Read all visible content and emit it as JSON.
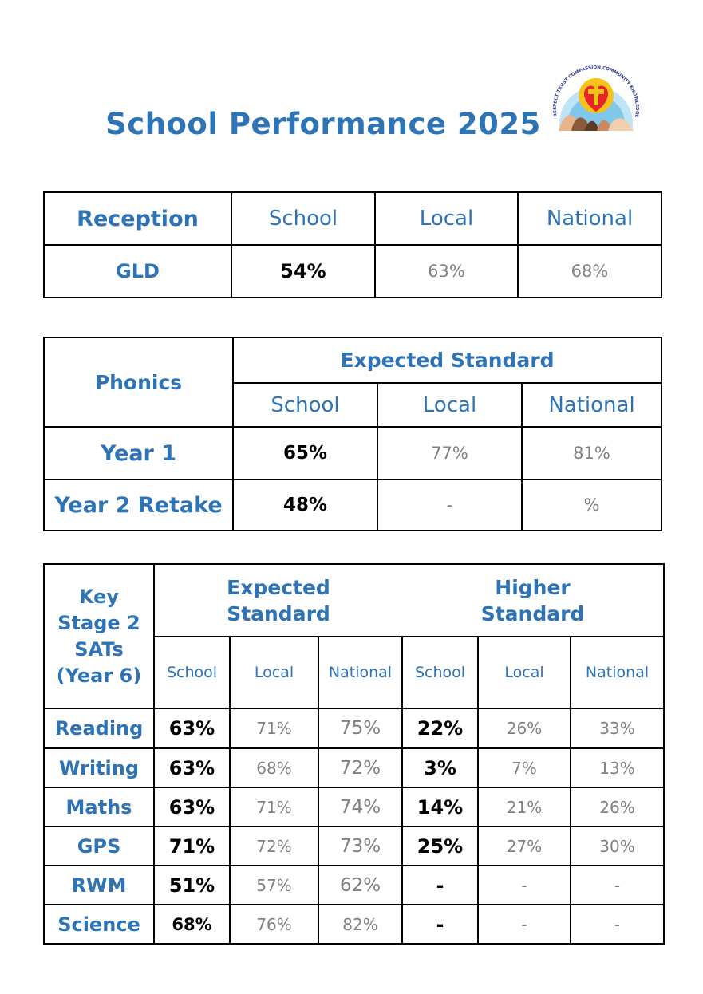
{
  "title": "School Performance 2025",
  "logo": {
    "ring_text": "RESPECT TRUST COMPASSION COMMUNITY KNOWLEDGE ASPIRATION"
  },
  "colors": {
    "heading_blue": "#2e74b5",
    "school_value": "#000000",
    "comparison_value": "#808080"
  },
  "reception": {
    "header": "Reception",
    "columns": [
      "School",
      "Local",
      "National"
    ],
    "row": {
      "label": "GLD",
      "school": "54%",
      "local": "63%",
      "national": "68%"
    }
  },
  "phonics": {
    "header": "Phonics",
    "group": "Expected Standard",
    "columns": [
      "School",
      "Local",
      "National"
    ],
    "rows": [
      {
        "label": "Year 1",
        "school": "65%",
        "local": "77%",
        "national": "81%"
      },
      {
        "label": "Year 2 Retake",
        "school": "48%",
        "local": "-",
        "national": "%"
      }
    ]
  },
  "ks2": {
    "header_lines": [
      "Key",
      "Stage 2",
      "SATs",
      "(Year 6)"
    ],
    "expected_lines": [
      "Expected",
      "Standard"
    ],
    "higher_lines": [
      "Higher",
      "Standard"
    ],
    "columns": [
      "School",
      "Local",
      "National",
      "School",
      "Local",
      "National"
    ],
    "rows": [
      {
        "label": "Reading",
        "values": [
          "63%",
          "71%",
          "75%",
          "22%",
          "26%",
          "33%"
        ]
      },
      {
        "label": "Writing",
        "values": [
          "63%",
          "68%",
          "72%",
          "3%",
          "7%",
          "13%"
        ]
      },
      {
        "label": "Maths",
        "values": [
          "63%",
          "71%",
          "74%",
          "14%",
          "21%",
          "26%"
        ]
      },
      {
        "label": "GPS",
        "values": [
          "71%",
          "72%",
          "73%",
          "25%",
          "27%",
          "30%"
        ]
      },
      {
        "label": "RWM",
        "values": [
          "51%",
          "57%",
          "62%",
          "-",
          "-",
          "-"
        ]
      },
      {
        "label": "Science",
        "values": [
          "68%",
          "76%",
          "82%",
          "-",
          "-",
          "-"
        ]
      }
    ]
  }
}
